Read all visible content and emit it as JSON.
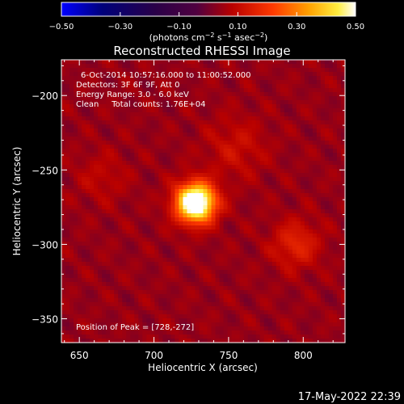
{
  "chart_data": {
    "type": "heatmap",
    "title": "Reconstructed RHESSI Image",
    "xlabel": "Heliocentric X (arcsec)",
    "ylabel": "Heliocentric Y (arcsec)",
    "xlim": [
      638,
      828
    ],
    "ylim": [
      -366,
      -176
    ],
    "xticks": [
      650,
      700,
      750,
      800
    ],
    "yticks": [
      -200,
      -250,
      -300,
      -350
    ],
    "colorbar": {
      "ticks": [
        -0.5,
        -0.3,
        -0.1,
        0.1,
        0.3,
        0.5
      ],
      "tick_labels": [
        "-0.50",
        "-0.30",
        "-0.10",
        "0.10",
        "0.30",
        "0.50"
      ],
      "range": [
        -0.5,
        0.5
      ],
      "units": "(photons cm^-2 s^-1 asec^-2)"
    },
    "info_lines": [
      "6-Oct-2014 10:57:16.000 to 11:00:52.000",
      "Detectors: 3F 6F 9F, Att 0",
      "Energy Range: 3.0 - 6.0 keV",
      "Clean     Total counts: 1.76E+04"
    ],
    "peak_text": "Position of Peak = [728,-272]",
    "peak": {
      "x": 728,
      "y": -272,
      "value": 0.5
    },
    "sources": [
      {
        "x": 728,
        "y": -272,
        "amplitude": 0.62,
        "sigma": 9
      },
      {
        "x": 795,
        "y": -300,
        "amplitude": 0.12,
        "sigma": 11
      },
      {
        "x": 755,
        "y": -235,
        "amplitude": 0.07,
        "sigma": 14
      },
      {
        "x": 665,
        "y": -255,
        "amplitude": 0.05,
        "sigma": 12
      }
    ],
    "timestamp": "17-May-2022 22:39"
  }
}
